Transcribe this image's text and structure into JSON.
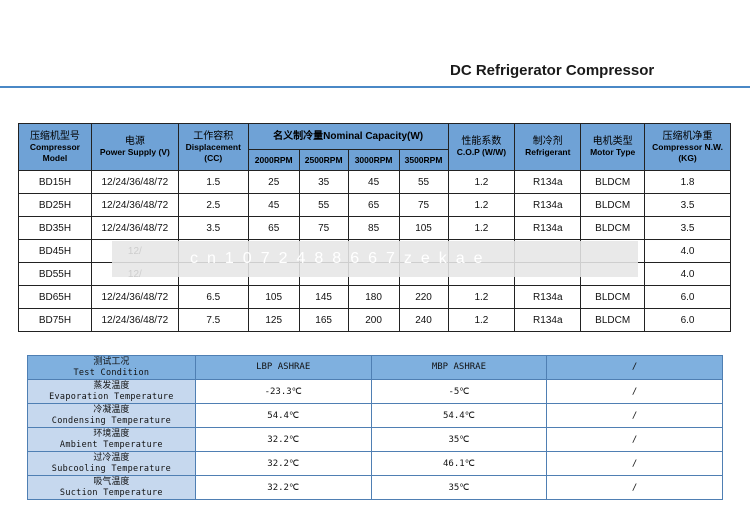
{
  "title": "DC Refrigerator Compressor",
  "watermark": "cn1072488667zekae",
  "spec": {
    "headers": {
      "model_cn": "压缩机型号",
      "model_en": "Compressor Model",
      "power_cn": "电源",
      "power_en": "Power Supply (V)",
      "disp_cn": "工作容积",
      "disp_en": "Displacement (CC)",
      "cap_title": "名义制冷量Nominal Capacity(W)",
      "rpm": [
        "2000RPM",
        "2500RPM",
        "3000RPM",
        "3500RPM"
      ],
      "cop_cn": "性能系数",
      "cop_en": "C.O.P (W/W)",
      "ref_cn": "制冷剂",
      "ref_en": "Refrigerant",
      "motor_cn": "电机类型",
      "motor_en": "Motor Type",
      "nw_cn": "压缩机净重",
      "nw_en": "Compressor N.W. (KG)"
    },
    "rows": [
      [
        "BD15H",
        "12/24/36/48/72",
        "1.5",
        "25",
        "35",
        "45",
        "55",
        "1.2",
        "R134a",
        "BLDCM",
        "1.8"
      ],
      [
        "BD25H",
        "12/24/36/48/72",
        "2.5",
        "45",
        "55",
        "65",
        "75",
        "1.2",
        "R134a",
        "BLDCM",
        "3.5"
      ],
      [
        "BD35H",
        "12/24/36/48/72",
        "3.5",
        "65",
        "75",
        "85",
        "105",
        "1.2",
        "R134a",
        "BLDCM",
        "3.5"
      ],
      [
        "BD45H",
        "12/",
        "",
        "",
        "",
        "",
        "",
        "",
        "",
        "",
        "4.0"
      ],
      [
        "BD55H",
        "12/",
        "",
        "",
        "",
        "",
        "",
        "",
        "",
        "",
        "4.0"
      ],
      [
        "BD65H",
        "12/24/36/48/72",
        "6.5",
        "105",
        "145",
        "180",
        "220",
        "1.2",
        "R134a",
        "BLDCM",
        "6.0"
      ],
      [
        "BD75H",
        "12/24/36/48/72",
        "7.5",
        "125",
        "165",
        "200",
        "240",
        "1.2",
        "R134a",
        "BLDCM",
        "6.0"
      ]
    ]
  },
  "conditions": {
    "header": {
      "cn": "测试工况",
      "en": "Test Condition",
      "lbp": "LBP ASHRAE",
      "mbp": "MBP ASHRAE",
      "extra": "/"
    },
    "rows": [
      {
        "cn": "蒸发温度",
        "en": "Evaporation Temperature",
        "lbp": "-23.3℃",
        "mbp": "-5℃",
        "extra": "/"
      },
      {
        "cn": "冷凝温度",
        "en": "Condensing Temperature",
        "lbp": "54.4℃",
        "mbp": "54.4℃",
        "extra": "/"
      },
      {
        "cn": "环境温度",
        "en": "Ambient Temperature",
        "lbp": "32.2℃",
        "mbp": "35℃",
        "extra": "/"
      },
      {
        "cn": "过冷温度",
        "en": "Subcooling Temperature",
        "lbp": "32.2℃",
        "mbp": "46.1℃",
        "extra": "/"
      },
      {
        "cn": "吸气温度",
        "en": "Suction Temperature",
        "lbp": "32.2℃",
        "mbp": "35℃",
        "extra": "/"
      }
    ]
  }
}
